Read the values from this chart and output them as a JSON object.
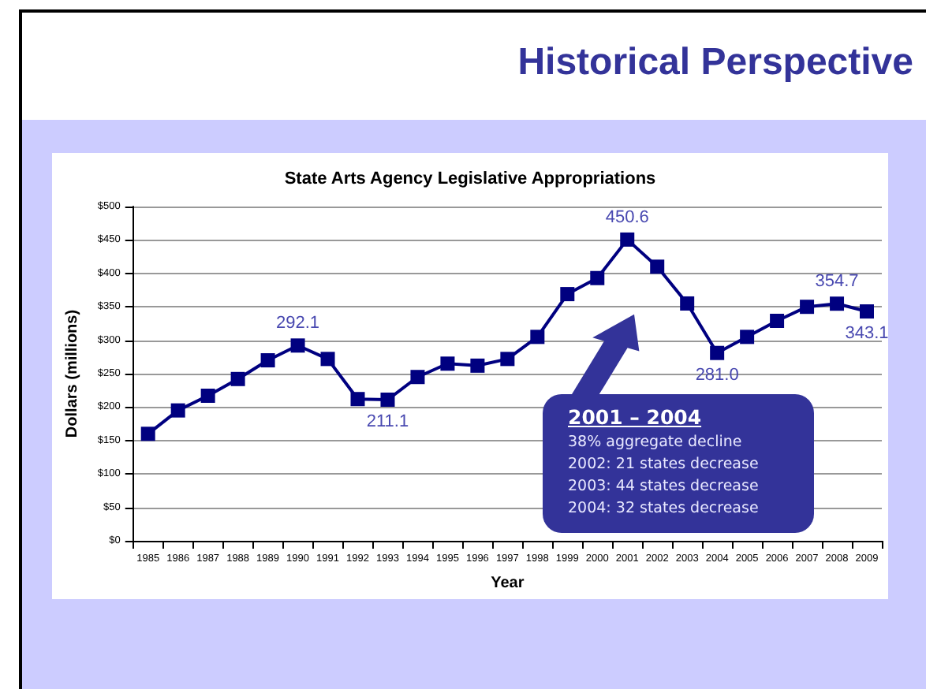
{
  "chart_data": {
    "type": "line",
    "title": "Historical Perspective",
    "subtitle": "State Arts Agency Legislative Appropriations",
    "xlabel": "Year",
    "ylabel": "Dollars (millions)",
    "categories": [
      "1985",
      "1986",
      "1987",
      "1988",
      "1989",
      "1990",
      "1991",
      "1992",
      "1993",
      "1994",
      "1995",
      "1996",
      "1997",
      "1998",
      "1999",
      "2000",
      "2001",
      "2002",
      "2003",
      "2004",
      "2005",
      "2006",
      "2007",
      "2008",
      "2009"
    ],
    "series": [
      {
        "color": "#000080",
        "values": [
          160,
          195,
          217,
          242,
          270,
          292.1,
          272,
          212,
          211.1,
          245,
          265,
          262,
          272,
          305,
          369,
          393,
          450.6,
          410,
          355,
          281.0,
          305,
          329,
          350,
          354.7,
          343.1
        ],
        "value_labels": [
          null,
          null,
          null,
          null,
          null,
          "292.1",
          null,
          null,
          "211.1",
          null,
          null,
          null,
          null,
          null,
          null,
          null,
          "450.6",
          null,
          null,
          "281.0",
          null,
          null,
          null,
          "354.7",
          "343.1"
        ]
      }
    ],
    "ylim": [
      0,
      500
    ],
    "yticks": [
      {
        "value": 0,
        "label": "$0"
      },
      {
        "value": 50,
        "label": "$50"
      },
      {
        "value": 100,
        "label": "$100"
      },
      {
        "value": 150,
        "label": "$150"
      },
      {
        "value": 200,
        "label": "$200"
      },
      {
        "value": 250,
        "label": "$250"
      },
      {
        "value": 300,
        "label": "$300"
      },
      {
        "value": 350,
        "label": "$350"
      },
      {
        "value": 400,
        "label": "$400"
      },
      {
        "value": 450,
        "label": "$450"
      },
      {
        "value": 500,
        "label": "$500"
      }
    ],
    "grid": "y",
    "marker": "square",
    "line_style": "solid",
    "annotations": [
      "2001 – 2004",
      "38% aggregate decline",
      "2002:  21 states decrease",
      "2003:  44 states decrease",
      "2004:  32 states decrease"
    ]
  }
}
